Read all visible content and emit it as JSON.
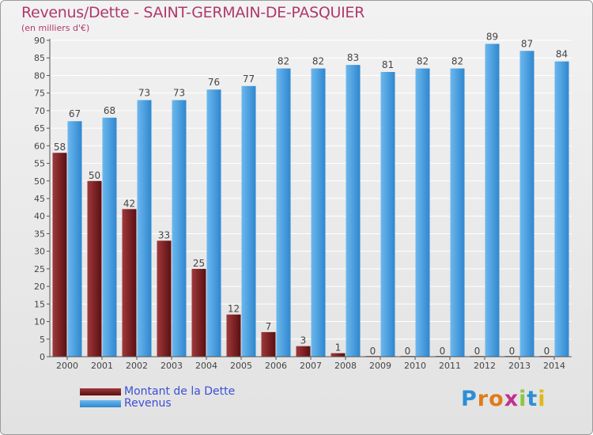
{
  "title": "Revenus/Dette - SAINT-GERMAIN-DE-PASQUIER",
  "subtitle": "(en milliers d'€)",
  "logo_text": "Proxiti",
  "colors": {
    "debt_dark": "#5a0f12",
    "debt_light": "#a0393b",
    "revenue_dark": "#2f87cf",
    "revenue_light": "#6cb8ee",
    "axis": "#555555",
    "grid": "#ffffff"
  },
  "chart_data": {
    "type": "bar",
    "title": "Revenus/Dette - SAINT-GERMAIN-DE-PASQUIER",
    "subtitle": "(en milliers d'€)",
    "categories": [
      "2000",
      "2001",
      "2002",
      "2003",
      "2004",
      "2005",
      "2006",
      "2007",
      "2008",
      "2009",
      "2010",
      "2011",
      "2012",
      "2013",
      "2014"
    ],
    "series": [
      {
        "name": "Montant de la Dette",
        "values": [
          58,
          50,
          42,
          33,
          25,
          12,
          7,
          3,
          1,
          0,
          0,
          0,
          0,
          0,
          0
        ]
      },
      {
        "name": "Revenus",
        "values": [
          67,
          68,
          73,
          73,
          76,
          77,
          82,
          82,
          83,
          81,
          82,
          82,
          89,
          87,
          84
        ]
      }
    ],
    "yticks": [
      0,
      5,
      10,
      15,
      20,
      25,
      30,
      35,
      40,
      45,
      50,
      55,
      60,
      65,
      70,
      75,
      80,
      85,
      90
    ],
    "ylim": [
      0,
      90
    ],
    "grid": true,
    "legend_position": "bottom-left"
  }
}
